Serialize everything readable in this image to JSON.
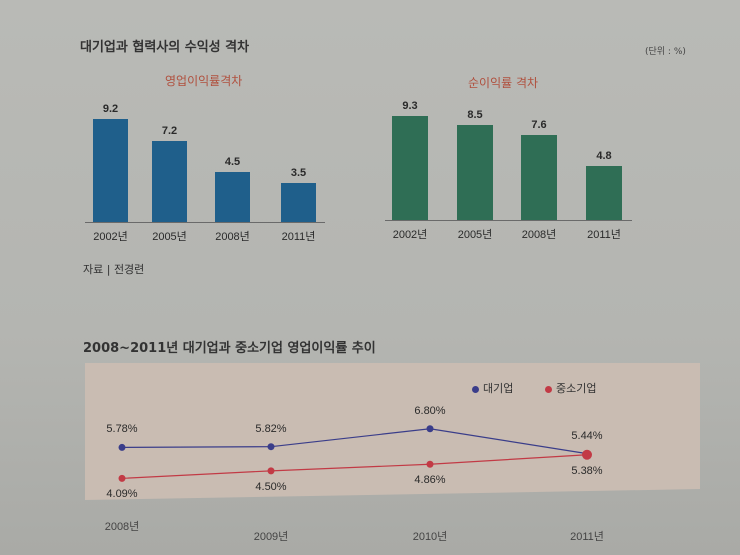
{
  "title": "대기업과 협력사의 수익성 격차",
  "unit": "(단위 : %)",
  "source": "자료 | 전경련",
  "colors": {
    "bar1": "#1f5f8b",
    "bar2": "#2f6e55",
    "large": "#3a3d8a",
    "sme": "#c23a45"
  },
  "chart_data": [
    {
      "type": "bar",
      "title": "영업이익률격차",
      "categories": [
        "2002년",
        "2005년",
        "2008년",
        "2011년"
      ],
      "values": [
        9.2,
        7.2,
        4.5,
        3.5
      ],
      "labels": [
        "9.2",
        "7.2",
        "4.5",
        "3.5"
      ]
    },
    {
      "type": "bar",
      "title": "순이익률 격차",
      "categories": [
        "2002년",
        "2005년",
        "2008년",
        "2011년"
      ],
      "values": [
        9.3,
        8.5,
        7.6,
        4.8
      ],
      "labels": [
        "9.3",
        "8.5",
        "7.6",
        "4.8"
      ]
    },
    {
      "type": "line",
      "title": "2008~2011년 대기업과 중소기업 영업이익률 추이",
      "categories": [
        "2008년",
        "2009년",
        "2010년",
        "2011년"
      ],
      "legend": "top-right",
      "series": [
        {
          "name": "대기업",
          "values": [
            5.78,
            5.82,
            6.8,
            5.44
          ],
          "labels": [
            "5.78%",
            "5.82%",
            "6.80%",
            "5.44%"
          ]
        },
        {
          "name": "중소기업",
          "values": [
            4.09,
            4.5,
            4.86,
            5.38
          ],
          "labels": [
            "4.09%",
            "4.50%",
            "4.86%",
            "5.38%"
          ]
        }
      ]
    }
  ]
}
